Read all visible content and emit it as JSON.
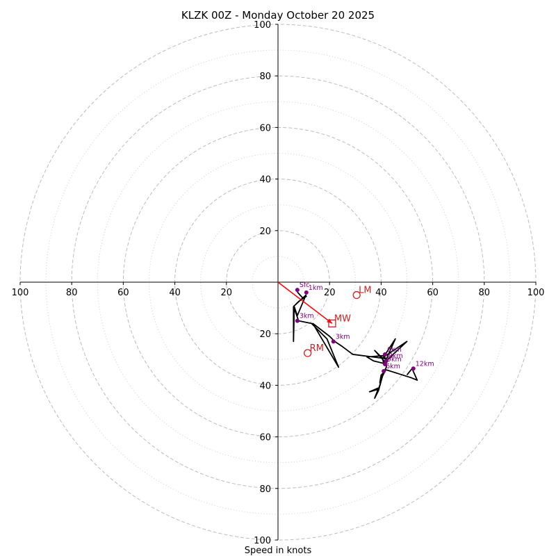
{
  "chart_data": {
    "type": "hodograph",
    "title": "KLZK 00Z - Monday October 20 2025",
    "xlabel": "Speed in knots",
    "max_speed": 100,
    "ring_major": [
      20,
      40,
      60,
      80,
      100
    ],
    "ring_minor": [
      10,
      30,
      50,
      70,
      90
    ],
    "tick_labels": [
      "100",
      "80",
      "60",
      "40",
      "20"
    ],
    "y_tick_labels": [
      "100",
      "80",
      "60",
      "40",
      "20"
    ],
    "x_tick_labels_right": [
      "20",
      "40",
      "60",
      "80",
      "100"
    ],
    "hodograph_trace": [
      [
        7.5,
        -3.8
      ],
      [
        9.5,
        -6.0
      ],
      [
        11.0,
        -5.5
      ],
      [
        8.0,
        -7.5
      ],
      [
        6.5,
        -9.0
      ],
      [
        10.8,
        -5.0
      ],
      [
        7.5,
        -13.0
      ],
      [
        6.2,
        -9.2
      ],
      [
        6.2,
        -15.0
      ],
      [
        6.0,
        -23.0
      ],
      [
        6.0,
        -9.5
      ],
      [
        8.0,
        -15.0
      ],
      [
        13.0,
        -16.0
      ],
      [
        19.0,
        -22.0
      ],
      [
        23.5,
        -33.0
      ],
      [
        13.5,
        -16.0
      ],
      [
        20.0,
        -21.0
      ],
      [
        22.0,
        -23.0
      ],
      [
        25.0,
        -25.0
      ],
      [
        29.0,
        -28.0
      ],
      [
        40.5,
        -29.5
      ],
      [
        41.0,
        -31.5
      ],
      [
        37.0,
        -30.5
      ],
      [
        34.5,
        -29.0
      ],
      [
        41.0,
        -28.5
      ],
      [
        42.0,
        -30.0
      ],
      [
        40.0,
        -29.0
      ],
      [
        37.5,
        -26.5
      ],
      [
        41.5,
        -31.0
      ],
      [
        45.5,
        -22.0
      ],
      [
        41.0,
        -29.0
      ],
      [
        44.0,
        -27.0
      ],
      [
        50.0,
        -23.0
      ],
      [
        42.0,
        -30.5
      ],
      [
        42.0,
        -33.0
      ],
      [
        41.0,
        -35.0
      ],
      [
        40.0,
        -37.5
      ],
      [
        39.5,
        -39.0
      ],
      [
        40.0,
        -36.0
      ],
      [
        41.5,
        -34.5
      ],
      [
        40.5,
        -36.5
      ],
      [
        39.0,
        -42.0
      ],
      [
        37.5,
        -45.0
      ],
      [
        39.0,
        -41.0
      ],
      [
        35.5,
        -42.5
      ],
      [
        39.0,
        -41.5
      ],
      [
        41.0,
        -35.0
      ],
      [
        42.0,
        -34.0
      ],
      [
        51.5,
        -37.0
      ],
      [
        54.0,
        -38.0
      ],
      [
        52.0,
        -33.5
      ],
      [
        50.0,
        -36.0
      ]
    ],
    "height_markers": [
      {
        "label": "Sfc",
        "u": 7.5,
        "v": -3.0
      },
      {
        "label": "1km",
        "u": 11.0,
        "v": -4.0
      },
      {
        "label": "3km",
        "u": 7.5,
        "v": -15.0
      },
      {
        "label": "3km",
        "u": 21.5,
        "v": -23.0
      },
      {
        "label": "6km",
        "u": 41.5,
        "v": -28.0
      },
      {
        "label": "8km",
        "u": 42.0,
        "v": -30.5
      },
      {
        "label": "9km",
        "u": 41.5,
        "v": -31.8
      },
      {
        "label": "6km",
        "u": 41.0,
        "v": -34.5
      },
      {
        "label": "12km",
        "u": 52.5,
        "v": -33.5
      }
    ],
    "storm_motion": [
      {
        "label": "LM",
        "u": 30.5,
        "v": -5.0,
        "shape": "circle"
      },
      {
        "label": "MW",
        "u": 21.0,
        "v": -16.0,
        "shape": "square"
      },
      {
        "label": "RM",
        "u": 11.5,
        "v": -27.5,
        "shape": "circle"
      }
    ],
    "shear_vector": {
      "from": [
        0,
        0
      ],
      "to": [
        21.0,
        -16.0
      ],
      "color": "#ff0000"
    },
    "colors": {
      "trace": "#000000",
      "marker": "#800080",
      "storm": "#cc2222",
      "grid": "#bbbbbb",
      "axis": "#000000"
    }
  }
}
